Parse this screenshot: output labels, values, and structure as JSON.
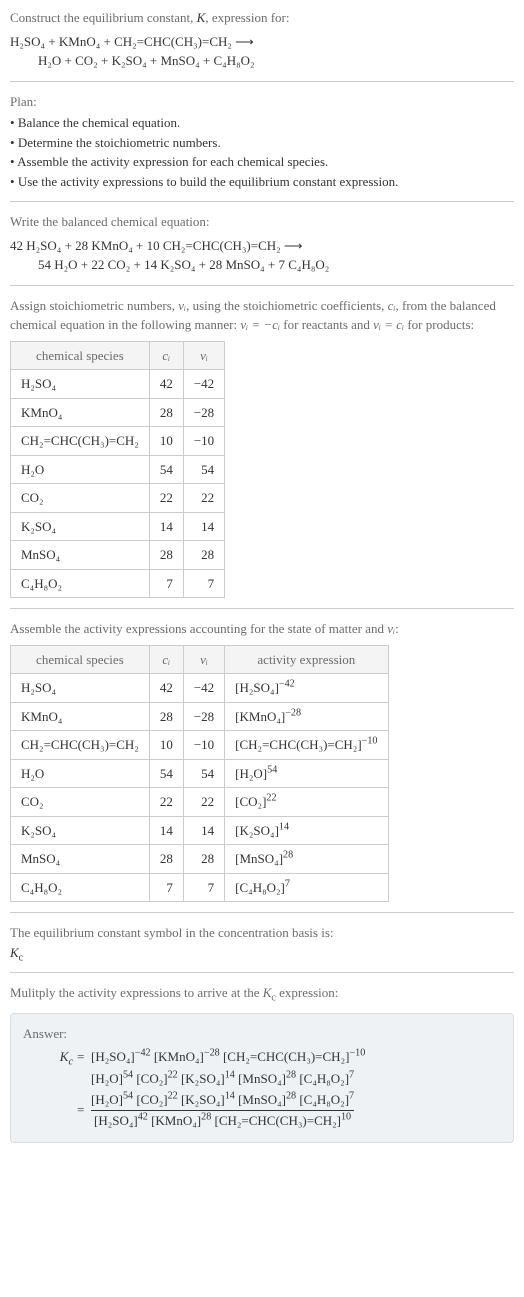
{
  "header": {
    "prompt_line1": "Construct the equilibrium constant, ",
    "K": "K",
    "prompt_line1b": ", expression for:"
  },
  "reaction_unbalanced": {
    "left": "H₂SO₄ + KMnO₄ + CH₂=CHC(CH₃)=CH₂ ⟶",
    "right": "H₂O + CO₂ + K₂SO₄ + MnSO₄ + C₄H₈O₂"
  },
  "plan": {
    "title": "Plan:",
    "items": [
      "Balance the chemical equation.",
      "Determine the stoichiometric numbers.",
      "Assemble the activity expression for each chemical species.",
      "Use the activity expressions to build the equilibrium constant expression."
    ]
  },
  "balanced": {
    "intro": "Write the balanced chemical equation:",
    "left": "42 H₂SO₄ + 28 KMnO₄ + 10 CH₂=CHC(CH₃)=CH₂ ⟶",
    "right": "54 H₂O + 22 CO₂ + 14 K₂SO₄ + 28 MnSO₄ + 7 C₄H₈O₂"
  },
  "stoich": {
    "intro1": "Assign stoichiometric numbers, ",
    "nu": "νᵢ",
    "intro2": ", using the stoichiometric coefficients, ",
    "ci": "cᵢ",
    "intro3": ", from the balanced chemical equation in the following manner: ",
    "rel_react": "νᵢ = −cᵢ",
    "for_react": " for reactants and ",
    "rel_prod": "νᵢ = cᵢ",
    "for_prod": " for products:",
    "headers": {
      "species": "chemical species",
      "c": "cᵢ",
      "v": "νᵢ"
    },
    "rows": [
      {
        "sp": "H₂SO₄",
        "c": "42",
        "v": "−42"
      },
      {
        "sp": "KMnO₄",
        "c": "28",
        "v": "−28"
      },
      {
        "sp": "CH₂=CHC(CH₃)=CH₂",
        "c": "10",
        "v": "−10"
      },
      {
        "sp": "H₂O",
        "c": "54",
        "v": "54"
      },
      {
        "sp": "CO₂",
        "c": "22",
        "v": "22"
      },
      {
        "sp": "K₂SO₄",
        "c": "14",
        "v": "14"
      },
      {
        "sp": "MnSO₄",
        "c": "28",
        "v": "28"
      },
      {
        "sp": "C₄H₈O₂",
        "c": "7",
        "v": "7"
      }
    ]
  },
  "activity": {
    "intro1": "Assemble the activity expressions accounting for the state of matter and ",
    "nu": "νᵢ",
    "intro2": ":",
    "headers": {
      "species": "chemical species",
      "c": "cᵢ",
      "v": "νᵢ",
      "act": "activity expression"
    },
    "rows": [
      {
        "sp": "H₂SO₄",
        "c": "42",
        "v": "−42",
        "a_base": "[H₂SO₄]",
        "a_exp": "−42"
      },
      {
        "sp": "KMnO₄",
        "c": "28",
        "v": "−28",
        "a_base": "[KMnO₄]",
        "a_exp": "−28"
      },
      {
        "sp": "CH₂=CHC(CH₃)=CH₂",
        "c": "10",
        "v": "−10",
        "a_base": "[CH₂=CHC(CH₃)=CH₂]",
        "a_exp": "−10"
      },
      {
        "sp": "H₂O",
        "c": "54",
        "v": "54",
        "a_base": "[H₂O]",
        "a_exp": "54"
      },
      {
        "sp": "CO₂",
        "c": "22",
        "v": "22",
        "a_base": "[CO₂]",
        "a_exp": "22"
      },
      {
        "sp": "K₂SO₄",
        "c": "14",
        "v": "14",
        "a_base": "[K₂SO₄]",
        "a_exp": "14"
      },
      {
        "sp": "MnSO₄",
        "c": "28",
        "v": "28",
        "a_base": "[MnSO₄]",
        "a_exp": "28"
      },
      {
        "sp": "C₄H₈O₂",
        "c": "7",
        "v": "7",
        "a_base": "[C₄H₈O₂]",
        "a_exp": "7"
      }
    ]
  },
  "symbol_section": {
    "line1": "The equilibrium constant symbol in the concentration basis is:",
    "symbol": "K_c"
  },
  "multiply": {
    "line1": "Mulitply the activity expressions to arrive at the ",
    "kc": "K_c",
    "line2": " expression:"
  },
  "answer": {
    "label": "Answer:",
    "lhs": "K_c = ",
    "product_line1_terms": [
      {
        "b": "[H₂SO₄]",
        "e": "−42"
      },
      {
        "b": "[KMnO₄]",
        "e": "−28"
      },
      {
        "b": "[CH₂=CHC(CH₃)=CH₂]",
        "e": "−10"
      }
    ],
    "product_line2_terms": [
      {
        "b": "[H₂O]",
        "e": "54"
      },
      {
        "b": "[CO₂]",
        "e": "22"
      },
      {
        "b": "[K₂SO₄]",
        "e": "14"
      },
      {
        "b": "[MnSO₄]",
        "e": "28"
      },
      {
        "b": "[C₄H₈O₂]",
        "e": "7"
      }
    ],
    "frac_num_terms": [
      {
        "b": "[H₂O]",
        "e": "54"
      },
      {
        "b": "[CO₂]",
        "e": "22"
      },
      {
        "b": "[K₂SO₄]",
        "e": "14"
      },
      {
        "b": "[MnSO₄]",
        "e": "28"
      },
      {
        "b": "[C₄H₈O₂]",
        "e": "7"
      }
    ],
    "frac_den_terms": [
      {
        "b": "[H₂SO₄]",
        "e": "42"
      },
      {
        "b": "[KMnO₄]",
        "e": "28"
      },
      {
        "b": "[CH₂=CHC(CH₃)=CH₂]",
        "e": "10"
      }
    ]
  },
  "colors": {
    "text": "#333333",
    "muted": "#6b6b6b",
    "border": "#cccccc",
    "header_bg": "#f4f4f4",
    "answer_bg": "#eef2f5",
    "answer_border": "#d6dde3",
    "bg": "#ffffff"
  }
}
